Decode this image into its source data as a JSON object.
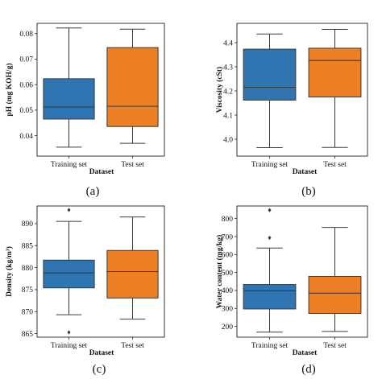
{
  "chart_data": [
    {
      "type": "box",
      "panel": "(a)",
      "ylabel": "pH (mg KOH/g)",
      "xlabel": "Dataset",
      "categories": [
        "Training set",
        "Test set"
      ],
      "ylim": [
        0.032,
        0.084
      ],
      "yticks": [
        0.04,
        0.05,
        0.06,
        0.07,
        0.08
      ],
      "ytick_labels": [
        "0.04",
        "0.05",
        "0.06",
        "0.07",
        "0.08"
      ],
      "boxes": [
        {
          "name": "Training set",
          "min": 0.0355,
          "q1": 0.0465,
          "median": 0.0512,
          "q3": 0.0623,
          "max": 0.0822,
          "outliers": []
        },
        {
          "name": "Test set",
          "min": 0.037,
          "q1": 0.0436,
          "median": 0.0515,
          "q3": 0.0745,
          "max": 0.0817,
          "outliers": []
        }
      ]
    },
    {
      "type": "box",
      "panel": "(b)",
      "ylabel": "Viscosity (cSt)",
      "xlabel": "Dataset",
      "categories": [
        "Training set",
        "Test set"
      ],
      "ylim": [
        3.93,
        4.48
      ],
      "yticks": [
        4.0,
        4.1,
        4.2,
        4.3,
        4.4
      ],
      "ytick_labels": [
        "4.0",
        "4.1",
        "4.2",
        "4.3",
        "4.4"
      ],
      "boxes": [
        {
          "name": "Training set",
          "min": 3.965,
          "q1": 4.162,
          "median": 4.215,
          "q3": 4.373,
          "max": 4.436,
          "outliers": []
        },
        {
          "name": "Test set",
          "min": 3.966,
          "q1": 4.175,
          "median": 4.326,
          "q3": 4.377,
          "max": 4.455,
          "outliers": []
        }
      ]
    },
    {
      "type": "box",
      "panel": "(c)",
      "ylabel": "Density (kg/m³)",
      "xlabel": "Dataset",
      "categories": [
        "Training set",
        "Test set"
      ],
      "ylim": [
        864.2,
        894.0
      ],
      "yticks": [
        865,
        870,
        875,
        880,
        885,
        890
      ],
      "ytick_labels": [
        "865",
        "870",
        "875",
        "880",
        "885",
        "890"
      ],
      "boxes": [
        {
          "name": "Training set",
          "min": 869.3,
          "q1": 875.4,
          "median": 878.8,
          "q3": 881.7,
          "max": 890.5,
          "outliers": [
            893.1,
            865.3
          ]
        },
        {
          "name": "Test set",
          "min": 868.3,
          "q1": 873.1,
          "median": 879.1,
          "q3": 883.9,
          "max": 891.5,
          "outliers": []
        }
      ]
    },
    {
      "type": "box",
      "panel": "(d)",
      "ylabel": "Water content (mg/kg)",
      "xlabel": "Dataset",
      "categories": [
        "Training set",
        "Test set"
      ],
      "ylim": [
        140,
        870
      ],
      "yticks": [
        200,
        300,
        400,
        500,
        600,
        700,
        800
      ],
      "ytick_labels": [
        "200",
        "300",
        "400",
        "500",
        "600",
        "700",
        "800"
      ],
      "boxes": [
        {
          "name": "Training set",
          "min": 168,
          "q1": 297,
          "median": 398,
          "q3": 433,
          "max": 636,
          "outliers": [
            847,
            693
          ]
        },
        {
          "name": "Test set",
          "min": 172,
          "q1": 272,
          "median": 385,
          "q3": 478,
          "max": 751,
          "outliers": []
        }
      ]
    }
  ],
  "colors": {
    "box_train": "#2f75b2",
    "box_test": "#ec7f23",
    "line": "#3a3a3a"
  }
}
